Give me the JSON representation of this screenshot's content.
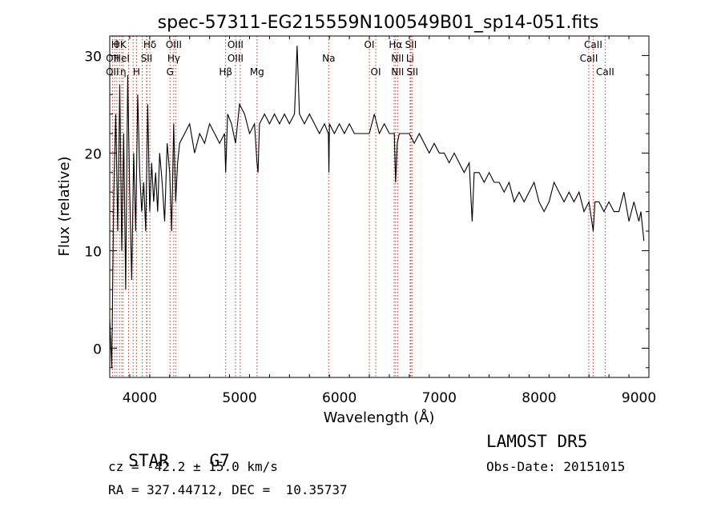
{
  "chart_data": {
    "type": "line",
    "title": "spec-57311-EG215559N100549B01_sp14-051.fits",
    "xlabel": "Wavelength (Å)",
    "ylabel": "Flux (relative)",
    "xlim": [
      3700,
      9100
    ],
    "ylim": [
      -3,
      32
    ],
    "xticks": [
      4000,
      5000,
      6000,
      7000,
      8000,
      9000
    ],
    "yticks": [
      0,
      10,
      20,
      30
    ],
    "grid": false,
    "line_color": "#000000",
    "marker_color": "#c0392b",
    "series": [
      {
        "x": [
          3700,
          3720,
          3740,
          3760,
          3780,
          3800,
          3820,
          3840,
          3860,
          3880,
          3900,
          3920,
          3940,
          3960,
          3980,
          4000,
          4020,
          4040,
          4060,
          4080,
          4100,
          4120,
          4140,
          4160,
          4180,
          4200,
          4225,
          4250,
          4275,
          4300,
          4320,
          4340,
          4360,
          4380,
          4400,
          4450,
          4500,
          4550,
          4600,
          4650,
          4700,
          4750,
          4800,
          4850,
          4861,
          4880,
          4920,
          4960,
          5000,
          5050,
          5100,
          5150,
          5175,
          5185,
          5200,
          5250,
          5300,
          5350,
          5400,
          5450,
          5500,
          5550,
          5577,
          5600,
          5650,
          5700,
          5750,
          5800,
          5850,
          5890,
          5895,
          5900,
          5950,
          6000,
          6050,
          6100,
          6150,
          6200,
          6250,
          6300,
          6350,
          6400,
          6450,
          6500,
          6550,
          6563,
          6580,
          6600,
          6650,
          6700,
          6750,
          6800,
          6850,
          6900,
          6950,
          7000,
          7050,
          7100,
          7150,
          7200,
          7250,
          7300,
          7330,
          7350,
          7400,
          7450,
          7500,
          7550,
          7600,
          7650,
          7700,
          7750,
          7800,
          7850,
          7900,
          7950,
          8000,
          8050,
          8100,
          8150,
          8200,
          8250,
          8300,
          8350,
          8400,
          8450,
          8500,
          8542,
          8560,
          8600,
          8650,
          8700,
          8750,
          8800,
          8850,
          8900,
          8950,
          9000,
          9020,
          9050
        ],
        "y": [
          3,
          -2,
          16,
          24,
          12,
          27,
          10,
          22,
          6,
          28,
          16,
          7,
          20,
          12,
          26,
          18,
          14,
          17,
          12,
          25,
          14,
          19,
          15,
          18,
          14,
          20,
          17,
          13,
          21,
          18,
          12,
          23,
          15,
          19,
          21,
          22,
          23,
          20,
          22,
          21,
          23,
          22,
          21,
          22,
          18,
          24,
          23,
          21,
          25,
          24,
          22,
          23,
          19,
          18,
          23,
          24,
          23,
          24,
          23,
          24,
          23,
          24,
          31,
          24,
          23,
          24,
          23,
          22,
          23,
          22,
          18,
          23,
          22,
          23,
          22,
          23,
          22,
          22,
          22,
          22,
          24,
          22,
          23,
          22,
          22,
          17,
          21,
          22,
          22,
          22,
          21,
          22,
          21,
          20,
          21,
          20,
          20,
          19,
          20,
          19,
          18,
          19,
          13,
          18,
          18,
          17,
          18,
          17,
          17,
          16,
          17,
          15,
          16,
          15,
          16,
          17,
          15,
          14,
          15,
          17,
          16,
          15,
          16,
          15,
          16,
          14,
          15,
          12,
          15,
          15,
          14,
          15,
          14,
          14,
          16,
          13,
          15,
          13,
          14,
          11
        ],
        "name": ""
      }
    ],
    "line_markers": [
      {
        "x": 3750,
        "label": "H",
        "row": 0
      },
      {
        "x": 3771,
        "label": "θ",
        "row": 0
      },
      {
        "x": 3798,
        "label": "",
        "row": 0
      },
      {
        "x": 3835,
        "label": "K",
        "row": 0
      },
      {
        "x": 3889,
        "label": "",
        "row": 0
      },
      {
        "x": 3934,
        "label": "",
        "row": 0
      },
      {
        "x": 3968,
        "label": "",
        "row": 0
      },
      {
        "x": 4026,
        "label": "",
        "row": 0
      },
      {
        "x": 4072,
        "label": "",
        "row": 0
      },
      {
        "x": 4102,
        "label": "Hδ",
        "row": 0
      },
      {
        "x": 4304,
        "label": "",
        "row": 0
      },
      {
        "x": 4341,
        "label": "OIII",
        "row": 0
      },
      {
        "x": 4363,
        "label": "",
        "row": 0
      },
      {
        "x": 4861,
        "label": "",
        "row": 0
      },
      {
        "x": 4959,
        "label": "OIII",
        "row": 0
      },
      {
        "x": 5007,
        "label": "",
        "row": 0
      },
      {
        "x": 5175,
        "label": "",
        "row": 0
      },
      {
        "x": 5893,
        "label": "",
        "row": 0
      },
      {
        "x": 6300,
        "label": "OI",
        "row": 0
      },
      {
        "x": 6364,
        "label": "",
        "row": 0
      },
      {
        "x": 6548,
        "label": "",
        "row": 0
      },
      {
        "x": 6563,
        "label": "Hα",
        "row": 0
      },
      {
        "x": 6583,
        "label": "",
        "row": 0
      },
      {
        "x": 6708,
        "label": "",
        "row": 0
      },
      {
        "x": 6717,
        "label": "SII",
        "row": 0
      },
      {
        "x": 6731,
        "label": "",
        "row": 0
      },
      {
        "x": 8498,
        "label": "",
        "row": 0
      },
      {
        "x": 8542,
        "label": "CaII",
        "row": 0
      },
      {
        "x": 8662,
        "label": "",
        "row": 0
      },
      {
        "x": 3727,
        "label": "OII",
        "row": 1
      },
      {
        "x": 3820,
        "label": "HeI",
        "row": 1
      },
      {
        "x": 4069,
        "label": "SII",
        "row": 1
      },
      {
        "x": 4341,
        "label": "Hγ",
        "row": 1
      },
      {
        "x": 4959,
        "label": "OIII",
        "row": 1
      },
      {
        "x": 5893,
        "label": "Na",
        "row": 1
      },
      {
        "x": 6583,
        "label": "NII",
        "row": 1
      },
      {
        "x": 6708,
        "label": "Li",
        "row": 1
      },
      {
        "x": 8498,
        "label": "CaII",
        "row": 1
      },
      {
        "x": 3727,
        "label": "OII",
        "row": 2
      },
      {
        "x": 3835,
        "label": "η",
        "row": 2
      },
      {
        "x": 3968,
        "label": "H",
        "row": 2
      },
      {
        "x": 4304,
        "label": "G",
        "row": 2
      },
      {
        "x": 4861,
        "label": "Hβ",
        "row": 2
      },
      {
        "x": 5175,
        "label": "Mg",
        "row": 2
      },
      {
        "x": 6364,
        "label": "OI",
        "row": 2
      },
      {
        "x": 6583,
        "label": "NII",
        "row": 2
      },
      {
        "x": 6731,
        "label": "SII",
        "row": 2
      },
      {
        "x": 8662,
        "label": "CaII",
        "row": 2
      }
    ]
  },
  "info": {
    "class_type": "STAR",
    "subclass": "G7",
    "survey": "LAMOST DR5",
    "redshift": "cz = -42.2 ± 15.0 km/s",
    "obs_date": "Obs-Date: 20151015",
    "coords": "RA = 327.44712, DEC =  10.35737"
  }
}
